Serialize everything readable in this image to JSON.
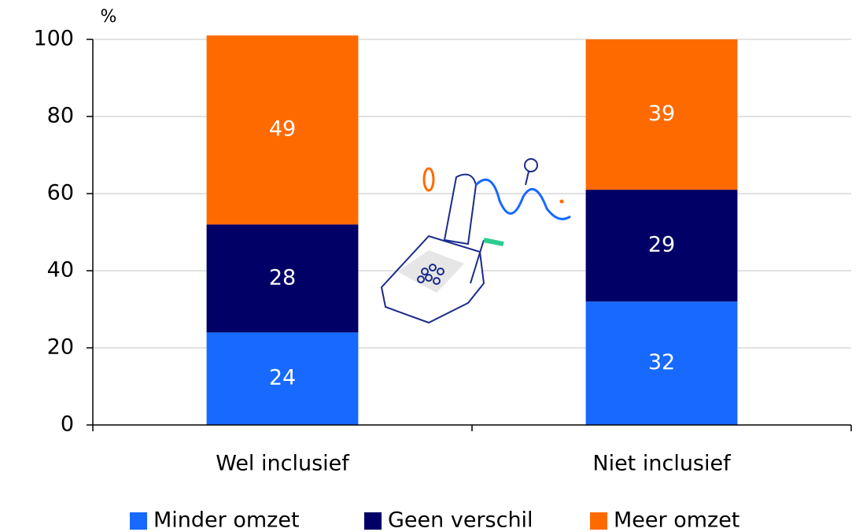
{
  "chart_data": {
    "type": "stacked-bar",
    "y_label": "%",
    "categories": [
      "Wel inclusief",
      "Niet inclusief"
    ],
    "series": [
      {
        "name": "Minder omzet",
        "color": "#1769ff",
        "values": [
          24,
          32
        ]
      },
      {
        "name": "Geen verschil",
        "color": "#000066",
        "values": [
          28,
          29
        ]
      },
      {
        "name": "Meer omzet",
        "color": "#ff6a00",
        "values": [
          49,
          39
        ]
      }
    ],
    "ylim": [
      0,
      100
    ],
    "yticks": [
      0,
      20,
      40,
      60,
      80,
      100
    ],
    "grid": true
  }
}
